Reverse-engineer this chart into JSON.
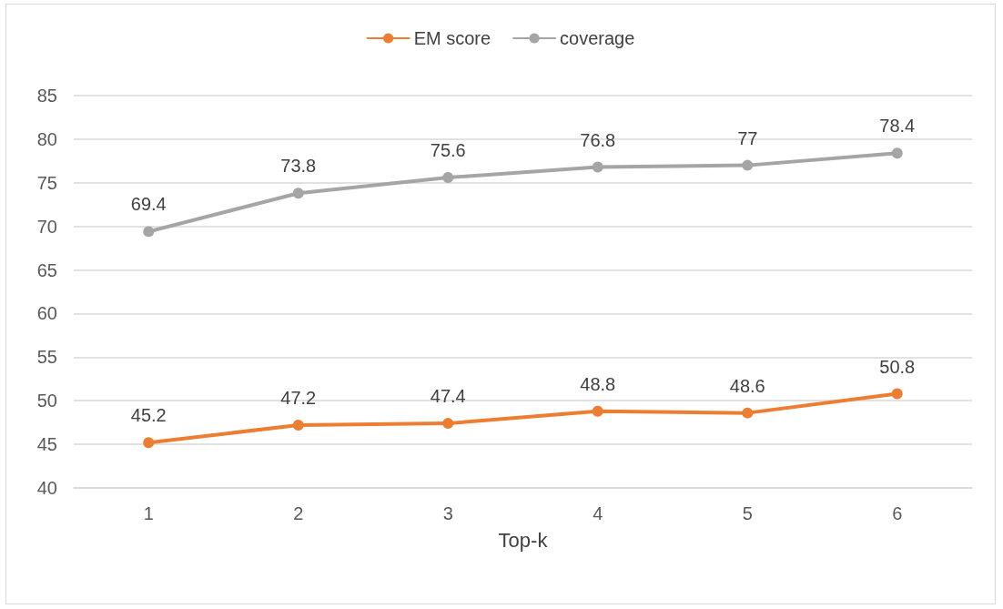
{
  "chart_data": {
    "type": "line",
    "xlabel": "Top-k",
    "categories": [
      "1",
      "2",
      "3",
      "4",
      "5",
      "6"
    ],
    "series": [
      {
        "name": "EM score",
        "color": "#ed7d31",
        "values": [
          45.2,
          47.2,
          47.4,
          48.8,
          48.6,
          50.8
        ]
      },
      {
        "name": "coverage",
        "color": "#a5a5a5",
        "values": [
          69.4,
          73.8,
          75.6,
          76.8,
          77,
          78.4
        ]
      }
    ],
    "ylim": [
      40,
      85
    ],
    "yticks": [
      40,
      45,
      50,
      55,
      60,
      65,
      70,
      75,
      80,
      85
    ],
    "grid": "y",
    "legend": "top",
    "marker": "circle",
    "line_style": "solid",
    "data_labels": true
  }
}
